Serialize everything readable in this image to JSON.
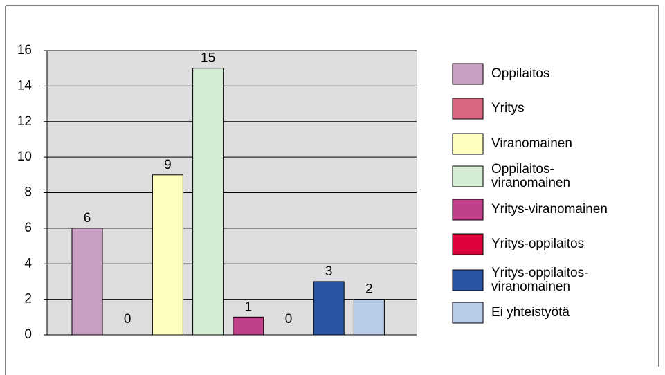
{
  "chart_data": {
    "type": "bar",
    "series": [
      {
        "name": "Oppilaitos",
        "color": "#c99fc3",
        "values": [
          6
        ]
      },
      {
        "name": "Yritys",
        "color": "#d9677f",
        "values": [
          0
        ]
      },
      {
        "name": "Viranomainen",
        "color": "#ffffc0",
        "values": [
          9
        ]
      },
      {
        "name": "Oppilaitos-\nviranomainen",
        "color": "#d4ecd4",
        "values": [
          15
        ]
      },
      {
        "name": "Yritys-viranomainen",
        "color": "#c0408a",
        "values": [
          1
        ]
      },
      {
        "name": "Yritys-oppilaitos",
        "color": "#e0003c",
        "values": [
          0
        ]
      },
      {
        "name": "Yritys-oppilaitos-\nviranomainen",
        "color": "#2a55a3",
        "values": [
          3
        ]
      },
      {
        "name": "Ei yhteistyötä",
        "color": "#b8cce8",
        "values": [
          2
        ]
      }
    ],
    "ylim": [
      0,
      16
    ],
    "yticks": [
      0,
      2,
      4,
      6,
      8,
      10,
      12,
      14,
      16
    ],
    "grid": true,
    "legend": "right"
  }
}
